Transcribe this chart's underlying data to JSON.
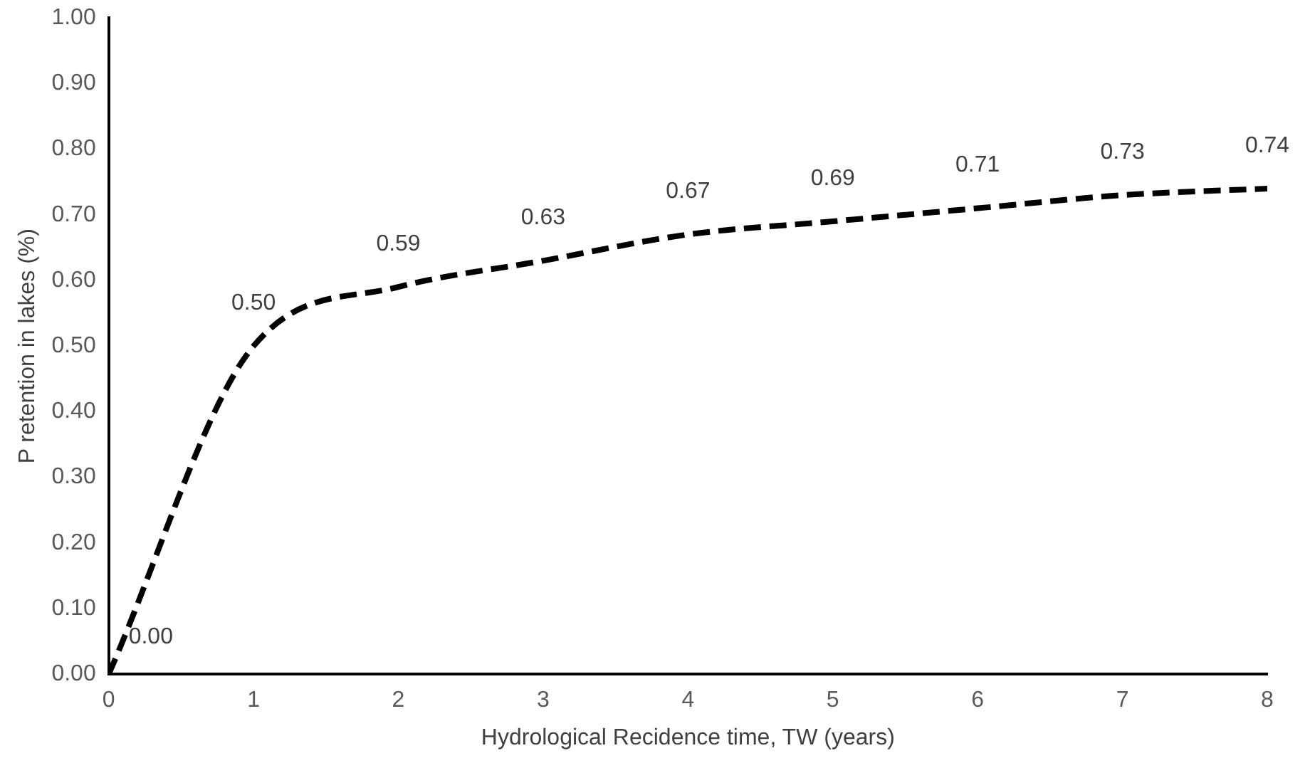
{
  "chart_data": {
    "type": "line",
    "xlabel": "Hydrological Recidence time, TW (years)",
    "ylabel": "P retention in lakes (%)",
    "x": [
      0,
      1,
      2,
      3,
      4,
      5,
      6,
      7,
      8
    ],
    "series": [
      {
        "color": "#000000",
        "values": [
          0.0,
          0.5,
          0.59,
          0.63,
          0.67,
          0.69,
          0.71,
          0.73,
          0.74
        ]
      }
    ],
    "xlim": [
      0,
      8
    ],
    "xticks": [
      0,
      1,
      2,
      3,
      4,
      5,
      6,
      7,
      8
    ],
    "ylim": [
      0,
      1
    ],
    "yticks": [
      {
        "value": 0,
        "label": "0.00"
      },
      {
        "value": 0.1,
        "label": "0.10"
      },
      {
        "value": 0.2,
        "label": "0.20"
      },
      {
        "value": 0.3,
        "label": "0.30"
      },
      {
        "value": 0.4,
        "label": "0.40"
      },
      {
        "value": 0.5,
        "label": "0.50"
      },
      {
        "value": 0.6,
        "label": "0.60"
      },
      {
        "value": 0.7,
        "label": "0.70"
      },
      {
        "value": 0.8,
        "label": "0.80"
      },
      {
        "value": 0.9,
        "label": "0.90"
      },
      {
        "value": 1,
        "label": "1.00"
      }
    ],
    "value_labels": [
      "0.00",
      "0.50",
      "0.59",
      "0.63",
      "0.67",
      "0.69",
      "0.71",
      "0.73",
      "0.74"
    ],
    "grid": false,
    "legend": false,
    "marker": "none",
    "line_style": "dashed"
  }
}
